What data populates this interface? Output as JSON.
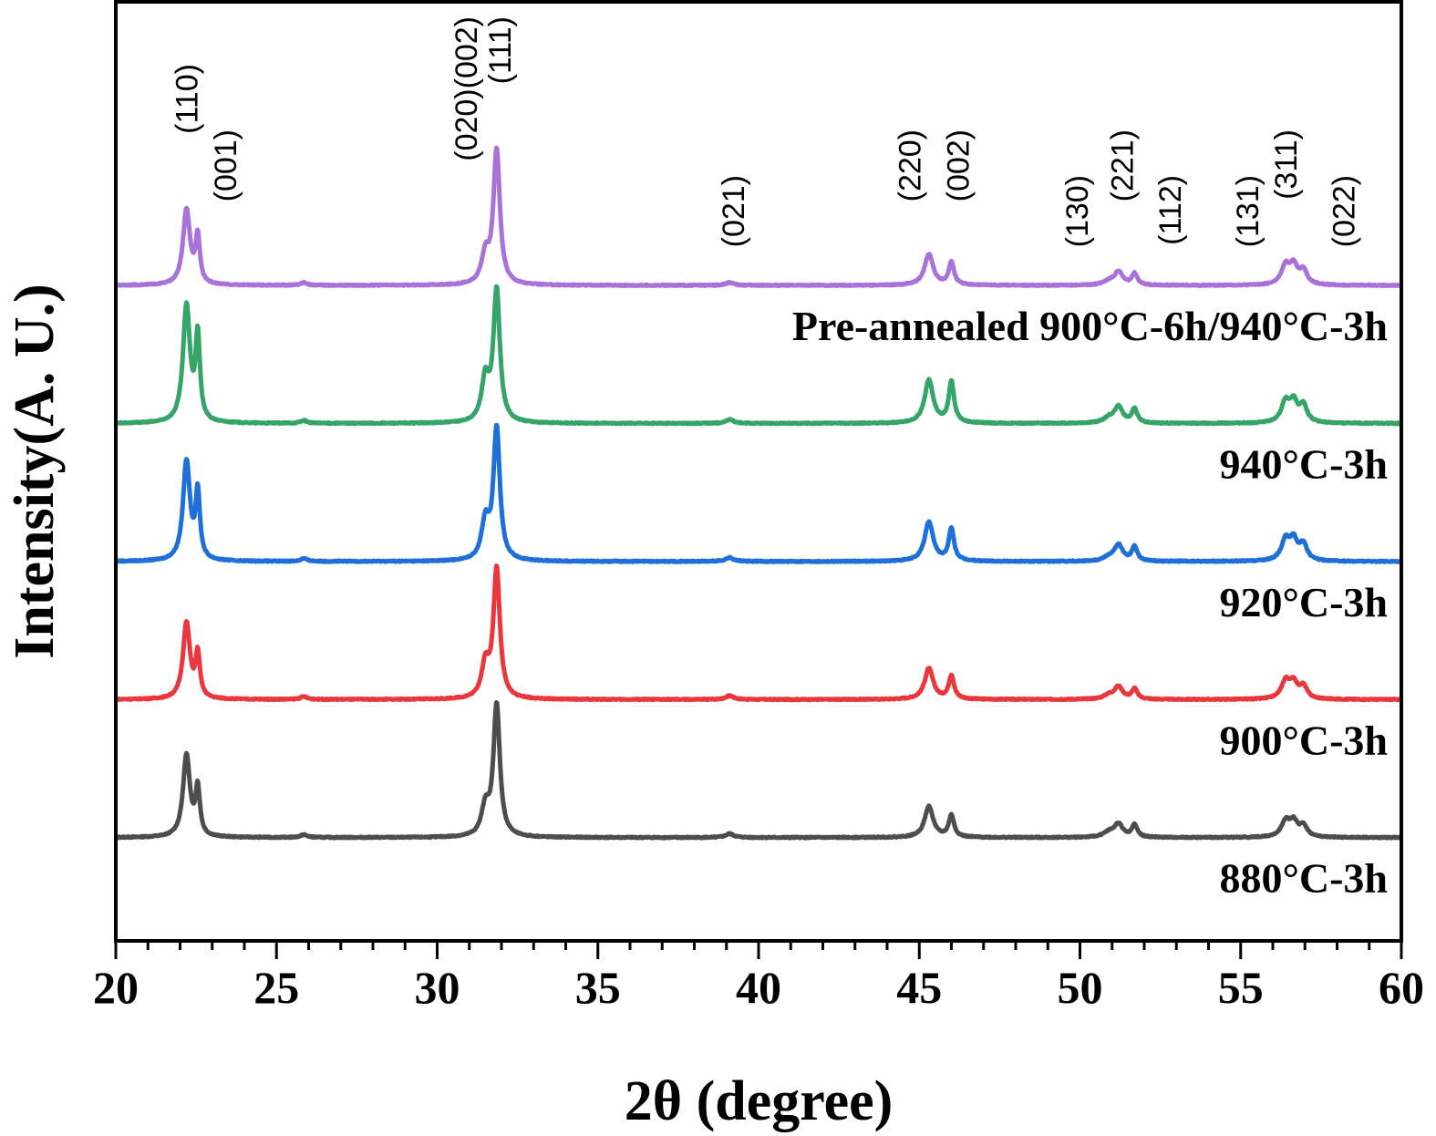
{
  "chart_data": {
    "type": "line",
    "title": "",
    "xlabel": "2θ (degree)",
    "ylabel": "Intensity(A. U.)",
    "xlim": [
      20,
      60
    ],
    "x_ticks": [
      20,
      25,
      30,
      35,
      40,
      45,
      50,
      55,
      60
    ],
    "x_minor_step": 1,
    "ylim": [
      0,
      1000
    ],
    "y_ticks": [],
    "grid": false,
    "legend": "inline-right-below-each-trace",
    "peak_annotations": [
      {
        "label": "(110)",
        "x": 22.2,
        "row": 1
      },
      {
        "label": "(001)",
        "x": 23.4,
        "row": 2
      },
      {
        "label": "(020)(002)",
        "x": 30.9,
        "row": 0
      },
      {
        "label": "(111)",
        "x": 31.95,
        "row": 0
      },
      {
        "label": "(021)",
        "x": 39.2,
        "row": 3
      },
      {
        "label": "(220)",
        "x": 44.7,
        "row": 2
      },
      {
        "label": "(002)",
        "x": 46.2,
        "row": 2
      },
      {
        "label": "(130)",
        "x": 49.9,
        "row": 3
      },
      {
        "label": "(221)",
        "x": 51.3,
        "row": 2
      },
      {
        "label": "(112)",
        "x": 52.8,
        "row": 3
      },
      {
        "label": "(131)",
        "x": 55.2,
        "row": 3
      },
      {
        "label": "(311)",
        "x": 56.4,
        "row": 2
      },
      {
        "label": "(022)",
        "x": 58.2,
        "row": 3
      }
    ],
    "series": [
      {
        "name": "880°C-3h",
        "color": "#4d4d4d",
        "offset": 110,
        "peaks": [
          {
            "x": 22.2,
            "h": 87,
            "w": 0.13
          },
          {
            "x": 22.55,
            "h": 50,
            "w": 0.08
          },
          {
            "x": 25.85,
            "h": 3,
            "w": 0.12
          },
          {
            "x": 31.5,
            "h": 30,
            "w": 0.14
          },
          {
            "x": 31.85,
            "h": 140,
            "w": 0.12
          },
          {
            "x": 39.1,
            "h": 4,
            "w": 0.15
          },
          {
            "x": 45.3,
            "h": 33,
            "w": 0.16
          },
          {
            "x": 46.0,
            "h": 23,
            "w": 0.1
          },
          {
            "x": 50.9,
            "h": 5,
            "w": 0.2
          },
          {
            "x": 51.2,
            "h": 14,
            "w": 0.16
          },
          {
            "x": 51.7,
            "h": 13,
            "w": 0.1
          },
          {
            "x": 56.4,
            "h": 17,
            "w": 0.16
          },
          {
            "x": 56.65,
            "h": 15,
            "w": 0.14
          },
          {
            "x": 56.95,
            "h": 12,
            "w": 0.14
          }
        ]
      },
      {
        "name": "900°C-3h",
        "color": "#e8383d",
        "offset": 257,
        "peaks": [
          {
            "x": 22.2,
            "h": 81,
            "w": 0.13
          },
          {
            "x": 22.55,
            "h": 46,
            "w": 0.08
          },
          {
            "x": 25.85,
            "h": 3,
            "w": 0.12
          },
          {
            "x": 31.5,
            "h": 35,
            "w": 0.14
          },
          {
            "x": 31.85,
            "h": 138,
            "w": 0.12
          },
          {
            "x": 39.1,
            "h": 4,
            "w": 0.15
          },
          {
            "x": 45.3,
            "h": 33,
            "w": 0.16
          },
          {
            "x": 46.0,
            "h": 25,
            "w": 0.1
          },
          {
            "x": 50.9,
            "h": 4,
            "w": 0.2
          },
          {
            "x": 51.2,
            "h": 13,
            "w": 0.16
          },
          {
            "x": 51.7,
            "h": 11,
            "w": 0.1
          },
          {
            "x": 56.4,
            "h": 19,
            "w": 0.16
          },
          {
            "x": 56.65,
            "h": 16,
            "w": 0.14
          },
          {
            "x": 56.95,
            "h": 13,
            "w": 0.14
          }
        ]
      },
      {
        "name": "920°C-3h",
        "color": "#1f6fd9",
        "offset": 404,
        "peaks": [
          {
            "x": 22.2,
            "h": 106,
            "w": 0.13
          },
          {
            "x": 22.55,
            "h": 70,
            "w": 0.08
          },
          {
            "x": 25.85,
            "h": 3,
            "w": 0.12
          },
          {
            "x": 31.5,
            "h": 40,
            "w": 0.14
          },
          {
            "x": 31.85,
            "h": 140,
            "w": 0.12
          },
          {
            "x": 39.1,
            "h": 4,
            "w": 0.15
          },
          {
            "x": 45.3,
            "h": 42,
            "w": 0.16
          },
          {
            "x": 46.0,
            "h": 34,
            "w": 0.1
          },
          {
            "x": 50.9,
            "h": 4,
            "w": 0.2
          },
          {
            "x": 51.2,
            "h": 17,
            "w": 0.16
          },
          {
            "x": 51.7,
            "h": 15,
            "w": 0.1
          },
          {
            "x": 56.4,
            "h": 22,
            "w": 0.16
          },
          {
            "x": 56.65,
            "h": 20,
            "w": 0.14
          },
          {
            "x": 56.95,
            "h": 17,
            "w": 0.14
          }
        ]
      },
      {
        "name": "940°C-3h",
        "color": "#35a468",
        "offset": 551,
        "peaks": [
          {
            "x": 22.2,
            "h": 124,
            "w": 0.13
          },
          {
            "x": 22.55,
            "h": 90,
            "w": 0.08
          },
          {
            "x": 25.85,
            "h": 3,
            "w": 0.12
          },
          {
            "x": 31.5,
            "h": 45,
            "w": 0.14
          },
          {
            "x": 31.85,
            "h": 140,
            "w": 0.12
          },
          {
            "x": 39.1,
            "h": 4,
            "w": 0.15
          },
          {
            "x": 45.3,
            "h": 46,
            "w": 0.16
          },
          {
            "x": 46.0,
            "h": 44,
            "w": 0.1
          },
          {
            "x": 50.9,
            "h": 5,
            "w": 0.2
          },
          {
            "x": 51.2,
            "h": 17,
            "w": 0.16
          },
          {
            "x": 51.7,
            "h": 15,
            "w": 0.1
          },
          {
            "x": 56.4,
            "h": 22,
            "w": 0.16
          },
          {
            "x": 56.65,
            "h": 20,
            "w": 0.14
          },
          {
            "x": 56.95,
            "h": 18,
            "w": 0.14
          }
        ]
      },
      {
        "name": "Pre-annealed 900°C-6h/940°C-3h",
        "color": "#a972d8",
        "offset": 698,
        "peaks": [
          {
            "x": 22.2,
            "h": 80,
            "w": 0.13
          },
          {
            "x": 22.55,
            "h": 50,
            "w": 0.08
          },
          {
            "x": 25.85,
            "h": 3,
            "w": 0.12
          },
          {
            "x": 31.5,
            "h": 30,
            "w": 0.14
          },
          {
            "x": 31.85,
            "h": 143,
            "w": 0.12
          },
          {
            "x": 39.1,
            "h": 3,
            "w": 0.15
          },
          {
            "x": 45.3,
            "h": 33,
            "w": 0.16
          },
          {
            "x": 46.0,
            "h": 24,
            "w": 0.1
          },
          {
            "x": 50.9,
            "h": 4,
            "w": 0.2
          },
          {
            "x": 51.2,
            "h": 14,
            "w": 0.16
          },
          {
            "x": 51.7,
            "h": 12,
            "w": 0.1
          },
          {
            "x": 56.4,
            "h": 20,
            "w": 0.16
          },
          {
            "x": 56.65,
            "h": 19,
            "w": 0.14
          },
          {
            "x": 56.95,
            "h": 15,
            "w": 0.14
          }
        ]
      }
    ]
  }
}
